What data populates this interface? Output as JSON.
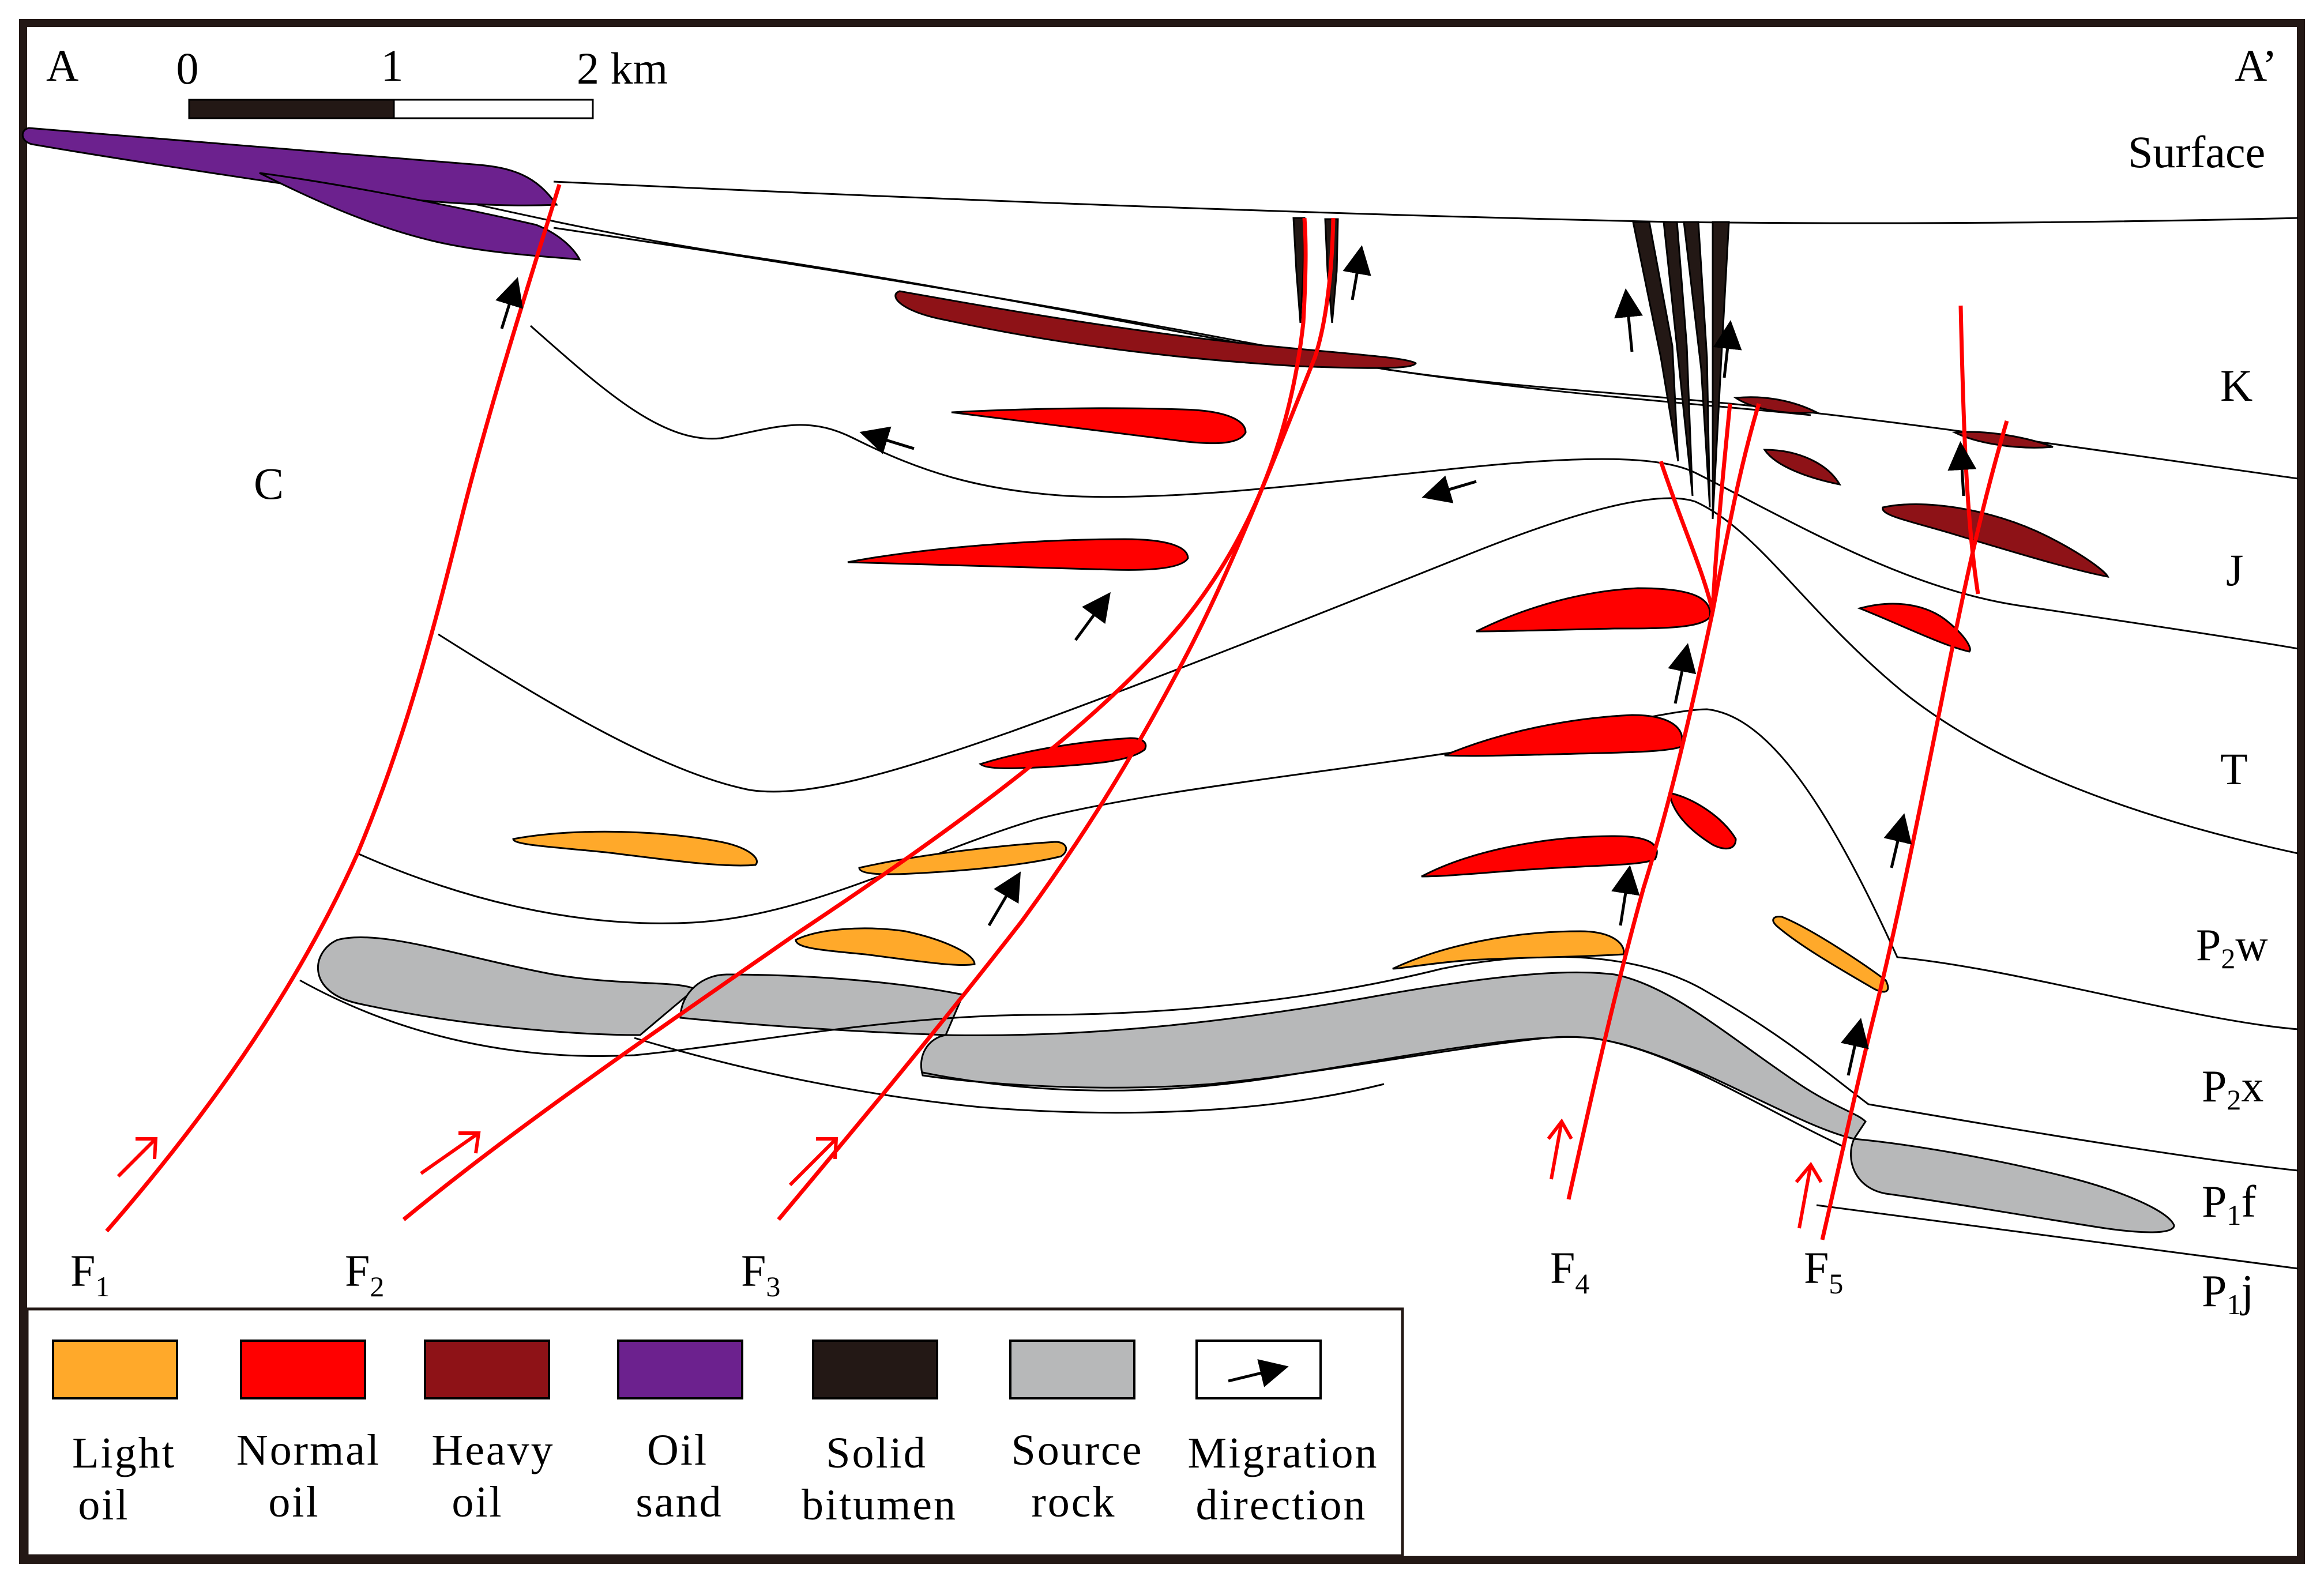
{
  "section": {
    "start_label": "A",
    "end_label": "A’"
  },
  "scale_bar": {
    "ticks": [
      "0",
      "1",
      "2 km"
    ]
  },
  "stratigraphy": {
    "surface": "Surface",
    "K": "K",
    "J": "J",
    "T": "T",
    "P2w": {
      "base": "P",
      "sub": "2",
      "suffix": "w"
    },
    "P2x": {
      "base": "P",
      "sub": "2",
      "suffix": "x"
    },
    "P1f": {
      "base": "P",
      "sub": "1",
      "suffix": "f"
    },
    "P1j": {
      "base": "P",
      "sub": "1",
      "suffix": "j"
    },
    "C": "C"
  },
  "faults": [
    {
      "base": "F",
      "sub": "1"
    },
    {
      "base": "F",
      "sub": "2"
    },
    {
      "base": "F",
      "sub": "3"
    },
    {
      "base": "F",
      "sub": "4"
    },
    {
      "base": "F",
      "sub": "5"
    }
  ],
  "legend": {
    "items": [
      {
        "line1": "Light",
        "line2": "oil",
        "color": "#FFA92A"
      },
      {
        "line1": "Normal",
        "line2": "oil",
        "color": "#FF0000"
      },
      {
        "line1": "Heavy",
        "line2": "oil",
        "color": "#8E1217"
      },
      {
        "line1": "Oil",
        "line2": "sand",
        "color": "#6C218E"
      },
      {
        "line1": "Solid",
        "line2": "bitumen",
        "color": "#231815"
      },
      {
        "line1": "Source",
        "line2": "rock",
        "color": "#B7B8B9"
      },
      {
        "line1": "Migration",
        "line2": "direction",
        "color": "#ffffff"
      }
    ]
  },
  "colors": {
    "frame": "#231815",
    "fault": "#FF0000",
    "light_oil": "#FFA92A",
    "normal_oil": "#FF0000",
    "heavy_oil": "#8E1217",
    "oil_sand": "#6C218E",
    "solid_bitumen": "#231815",
    "source_rock": "#B7B8B9"
  }
}
